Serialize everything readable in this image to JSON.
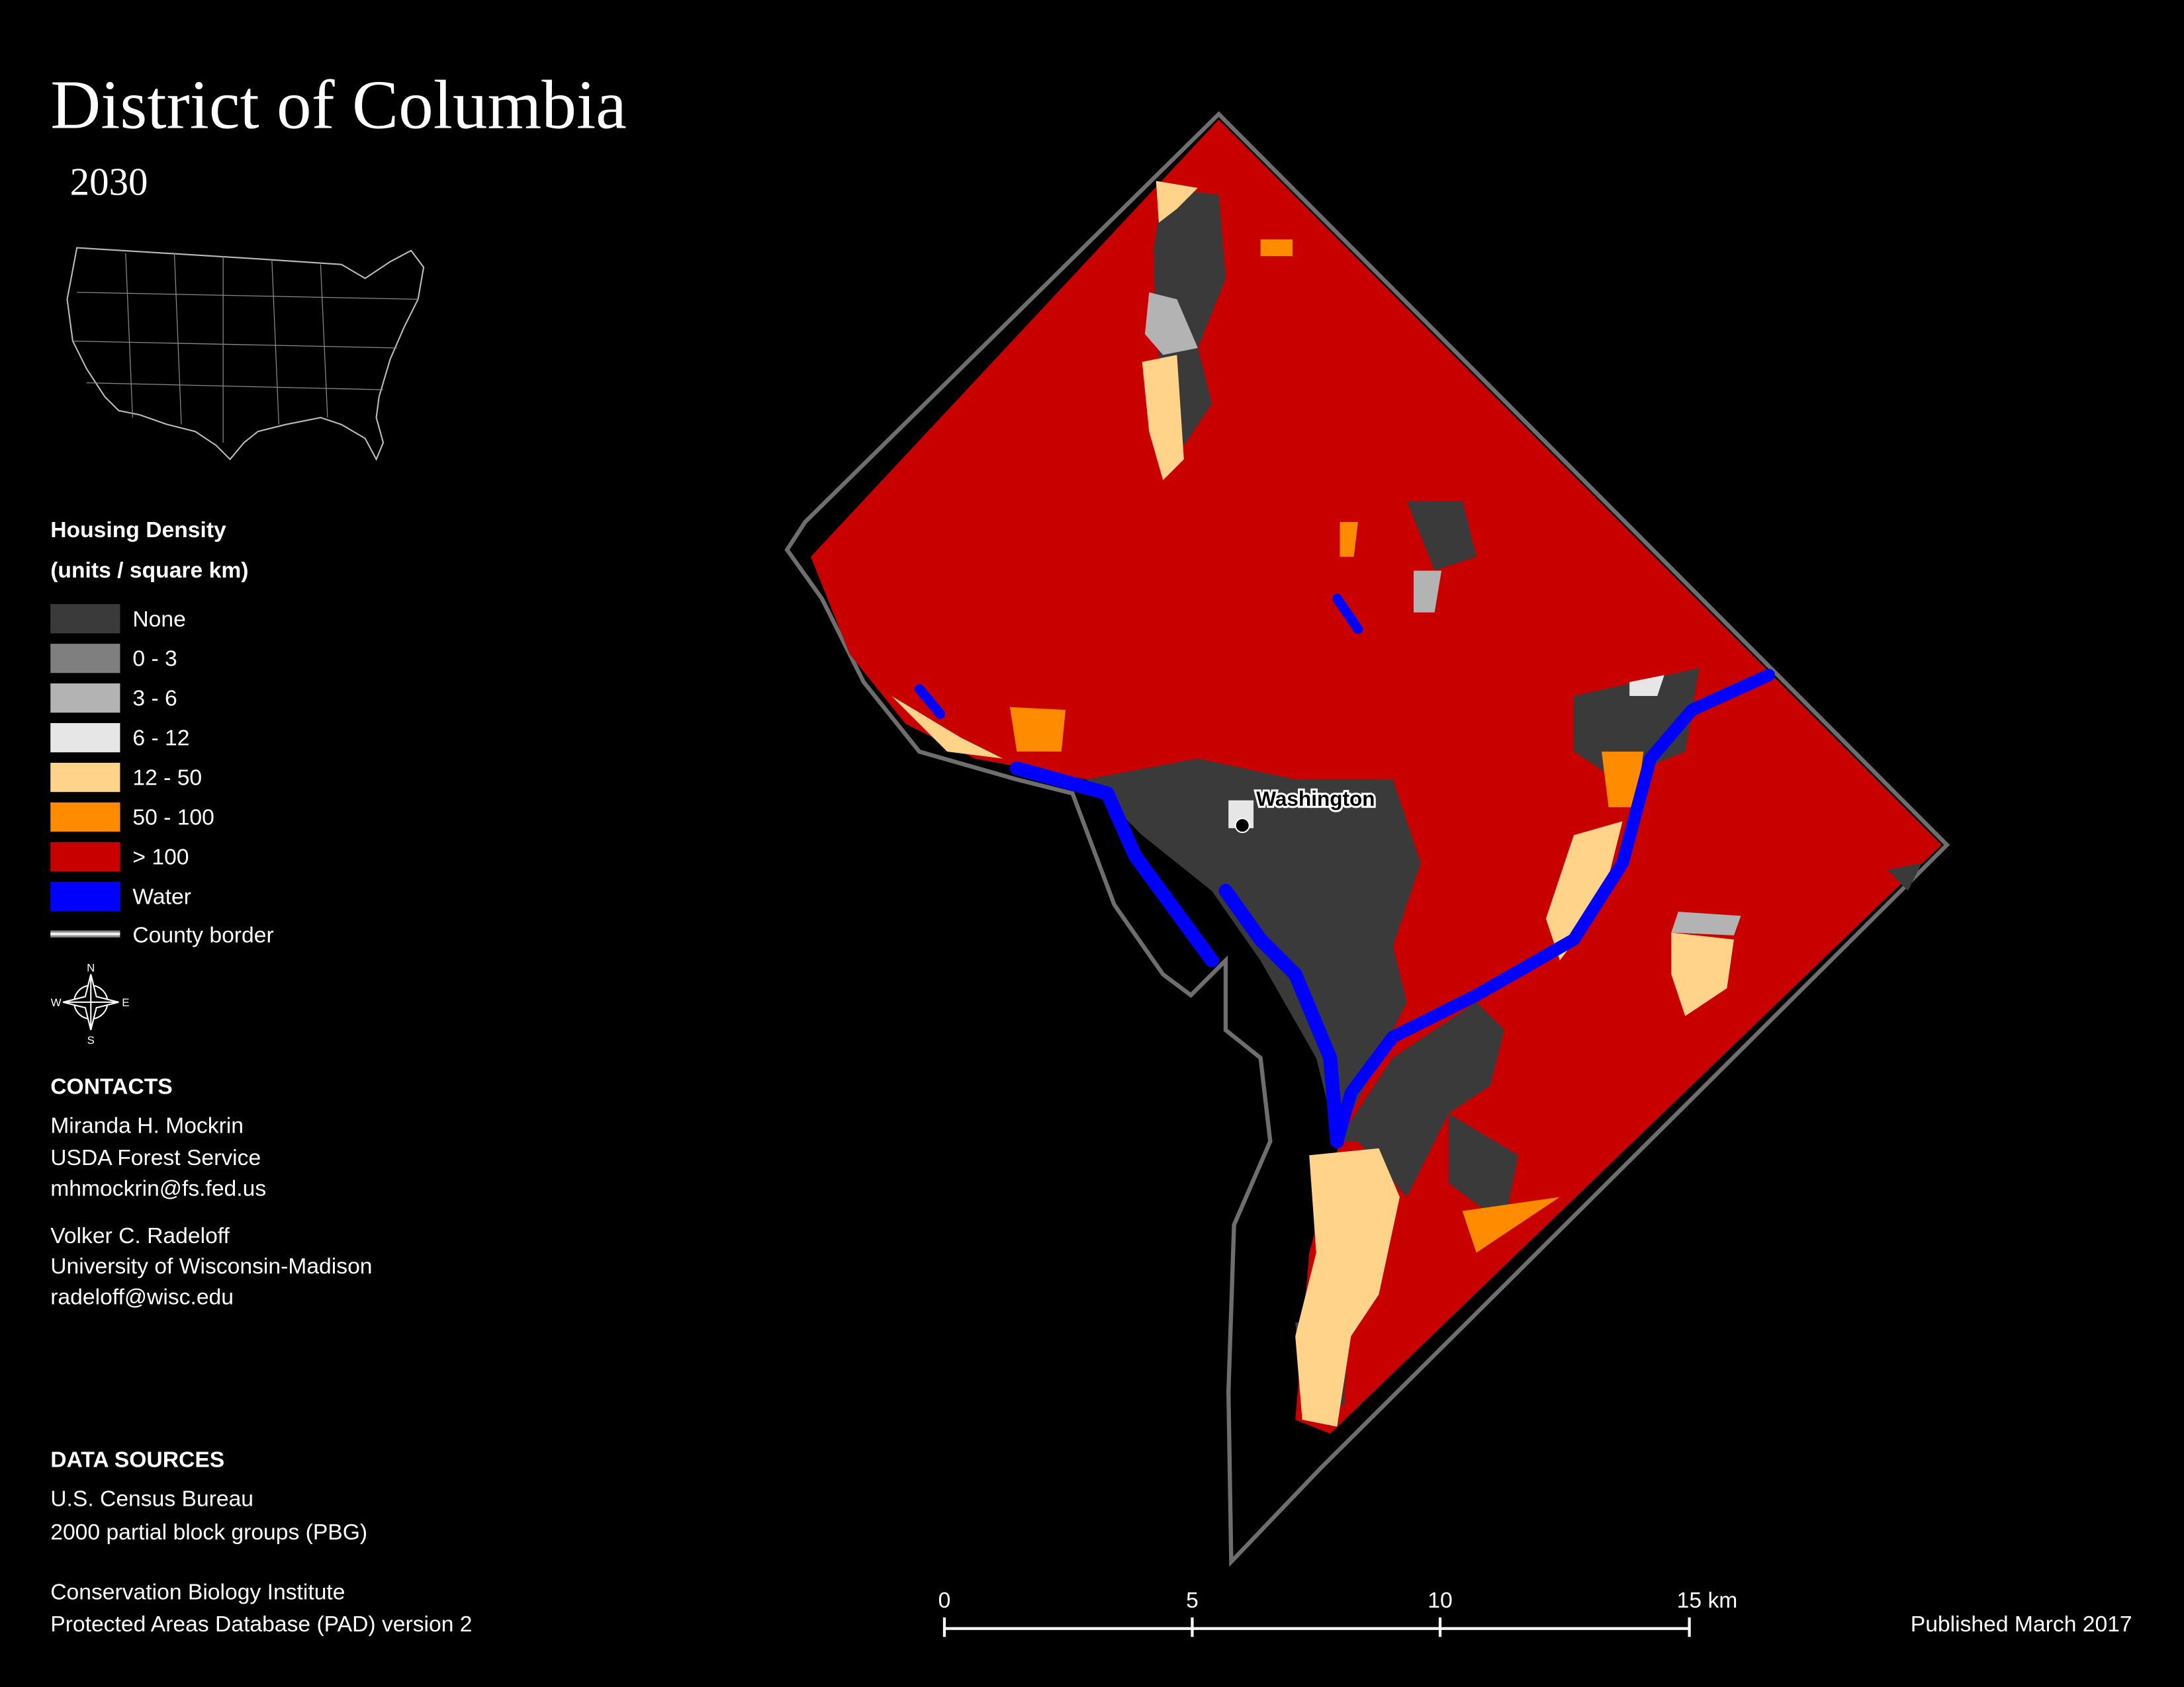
{
  "header": {
    "title": "District of Columbia",
    "subtitle": "2030"
  },
  "legend": {
    "title": "Housing Density",
    "units": "(units / square km)",
    "items": [
      {
        "label": "None",
        "color": "#3a3a3a"
      },
      {
        "label": "0 - 3",
        "color": "#7f7f7f"
      },
      {
        "label": "3 - 6",
        "color": "#b3b3b3"
      },
      {
        "label": "6 - 12",
        "color": "#e6e6e6"
      },
      {
        "label": "12 - 50",
        "color": "#ffd38a"
      },
      {
        "label": "50 - 100",
        "color": "#ff8c00"
      },
      {
        "label": "> 100",
        "color": "#c80000"
      },
      {
        "label": "Water",
        "color": "#0000ff"
      }
    ],
    "border_label": "County border"
  },
  "compass": {
    "n": "N",
    "s": "S",
    "e": "E",
    "w": "W"
  },
  "contacts": {
    "heading": "CONTACTS",
    "people": [
      {
        "name": "Miranda H. Mockrin",
        "org": "USDA Forest Service",
        "email": "mhmockrin@fs.fed.us"
      },
      {
        "name": "Volker C. Radeloff",
        "org": "University of Wisconsin-Madison",
        "email": "radeloff@wisc.edu"
      }
    ]
  },
  "data_sources": {
    "heading": "DATA SOURCES",
    "lines": [
      "U.S. Census Bureau",
      "2000 partial block groups (PBG)",
      "Conservation Biology Institute",
      "Protected Areas Database (PAD) version 2"
    ]
  },
  "map": {
    "city_label": "Washington"
  },
  "scale_bar": {
    "labels": [
      "0",
      "5",
      "10",
      "15 km"
    ]
  },
  "footer": {
    "published": "Published March 2017"
  }
}
